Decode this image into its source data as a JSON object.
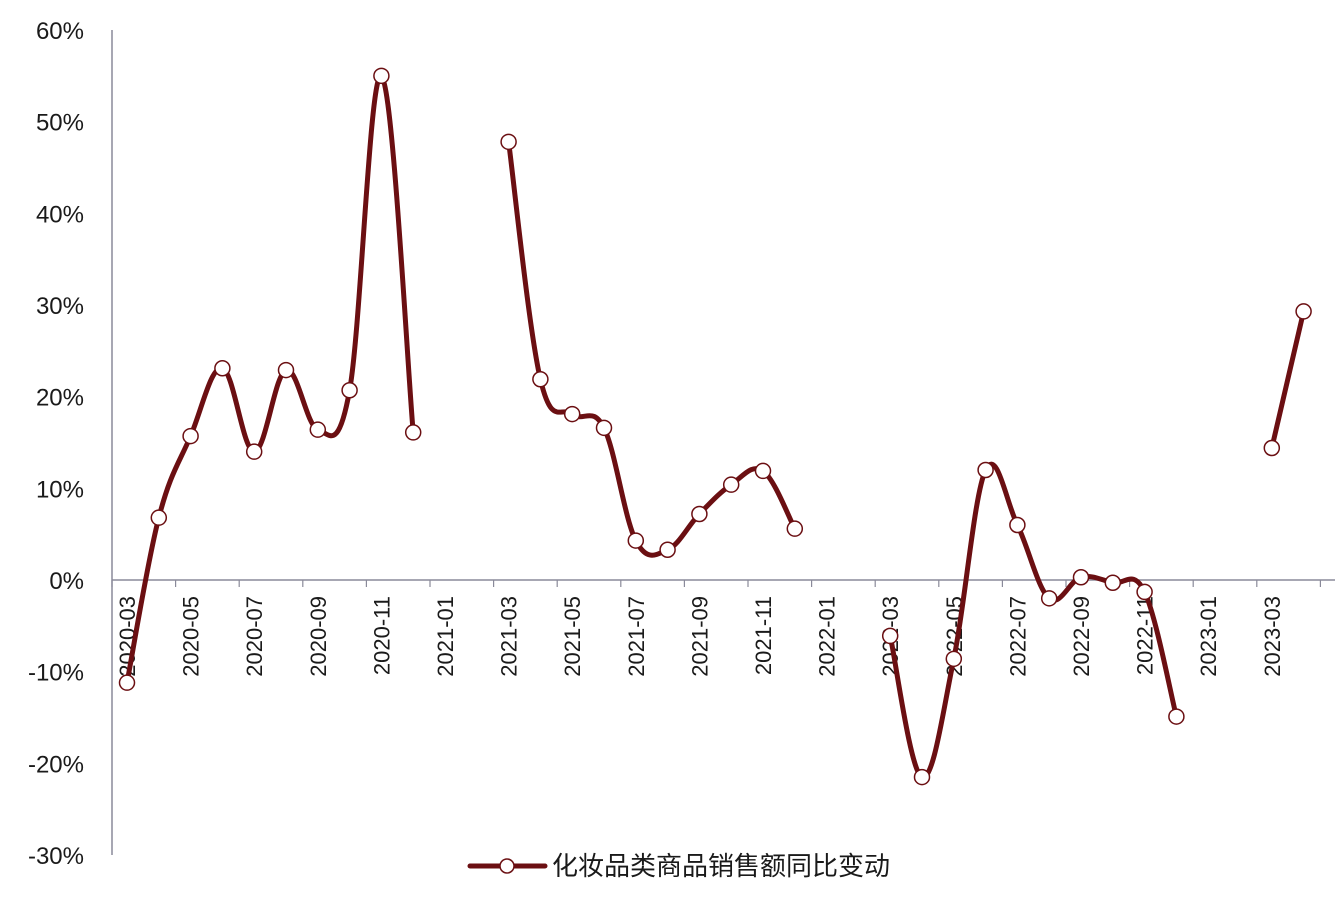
{
  "chart_data": {
    "type": "line",
    "title": "",
    "xlabel": "",
    "ylabel": "",
    "ylim": [
      -30,
      60
    ],
    "yticks": [
      "60%",
      "50%",
      "40%",
      "30%",
      "20%",
      "10%",
      "0%",
      "-10%",
      "-20%",
      "-30%"
    ],
    "ytick_values": [
      60,
      50,
      40,
      30,
      20,
      10,
      0,
      -10,
      -20,
      -30
    ],
    "xtick_labels": [
      "2020-03",
      "2020-05",
      "2020-07",
      "2020-09",
      "2020-11",
      "2021-01",
      "2021-03",
      "2021-05",
      "2021-07",
      "2021-09",
      "2021-11",
      "2022-01",
      "2022-03",
      "2022-05",
      "2022-07",
      "2022-09",
      "2022-11",
      "2023-01",
      "2023-03"
    ],
    "grid": false,
    "legend_position": "bottom",
    "x": [
      "2020-03",
      "2020-04",
      "2020-05",
      "2020-06",
      "2020-07",
      "2020-08",
      "2020-09",
      "2020-10",
      "2020-11",
      "2020-12",
      "2021-01",
      "2021-02",
      "2021-03",
      "2021-04",
      "2021-05",
      "2021-06",
      "2021-07",
      "2021-08",
      "2021-09",
      "2021-10",
      "2021-11",
      "2021-12",
      "2022-01",
      "2022-02",
      "2022-03",
      "2022-04",
      "2022-05",
      "2022-06",
      "2022-07",
      "2022-08",
      "2022-09",
      "2022-10",
      "2022-11",
      "2022-12",
      "2023-01",
      "2023-02",
      "2023-03",
      "2023-04"
    ],
    "series": [
      {
        "name": "化妆品类商品销售额同比变动",
        "color": "#6b0f12",
        "marker": "open-circle",
        "values": [
          -11.2,
          6.8,
          15.7,
          23.1,
          14.0,
          22.9,
          16.4,
          20.7,
          55.0,
          16.1,
          null,
          null,
          47.8,
          21.9,
          18.1,
          16.6,
          4.3,
          3.3,
          7.2,
          10.4,
          11.9,
          5.6,
          null,
          null,
          -6.1,
          -21.5,
          -8.6,
          12.0,
          6.0,
          -2.0,
          0.3,
          -0.3,
          -1.3,
          -14.9,
          null,
          null,
          14.4,
          29.3
        ]
      }
    ]
  },
  "legend": {
    "label": "化妆品类商品销售额同比变动"
  },
  "colors": {
    "line": "#6b0f12",
    "axis": "#8a8a9a",
    "marker_fill": "#ffffff"
  }
}
